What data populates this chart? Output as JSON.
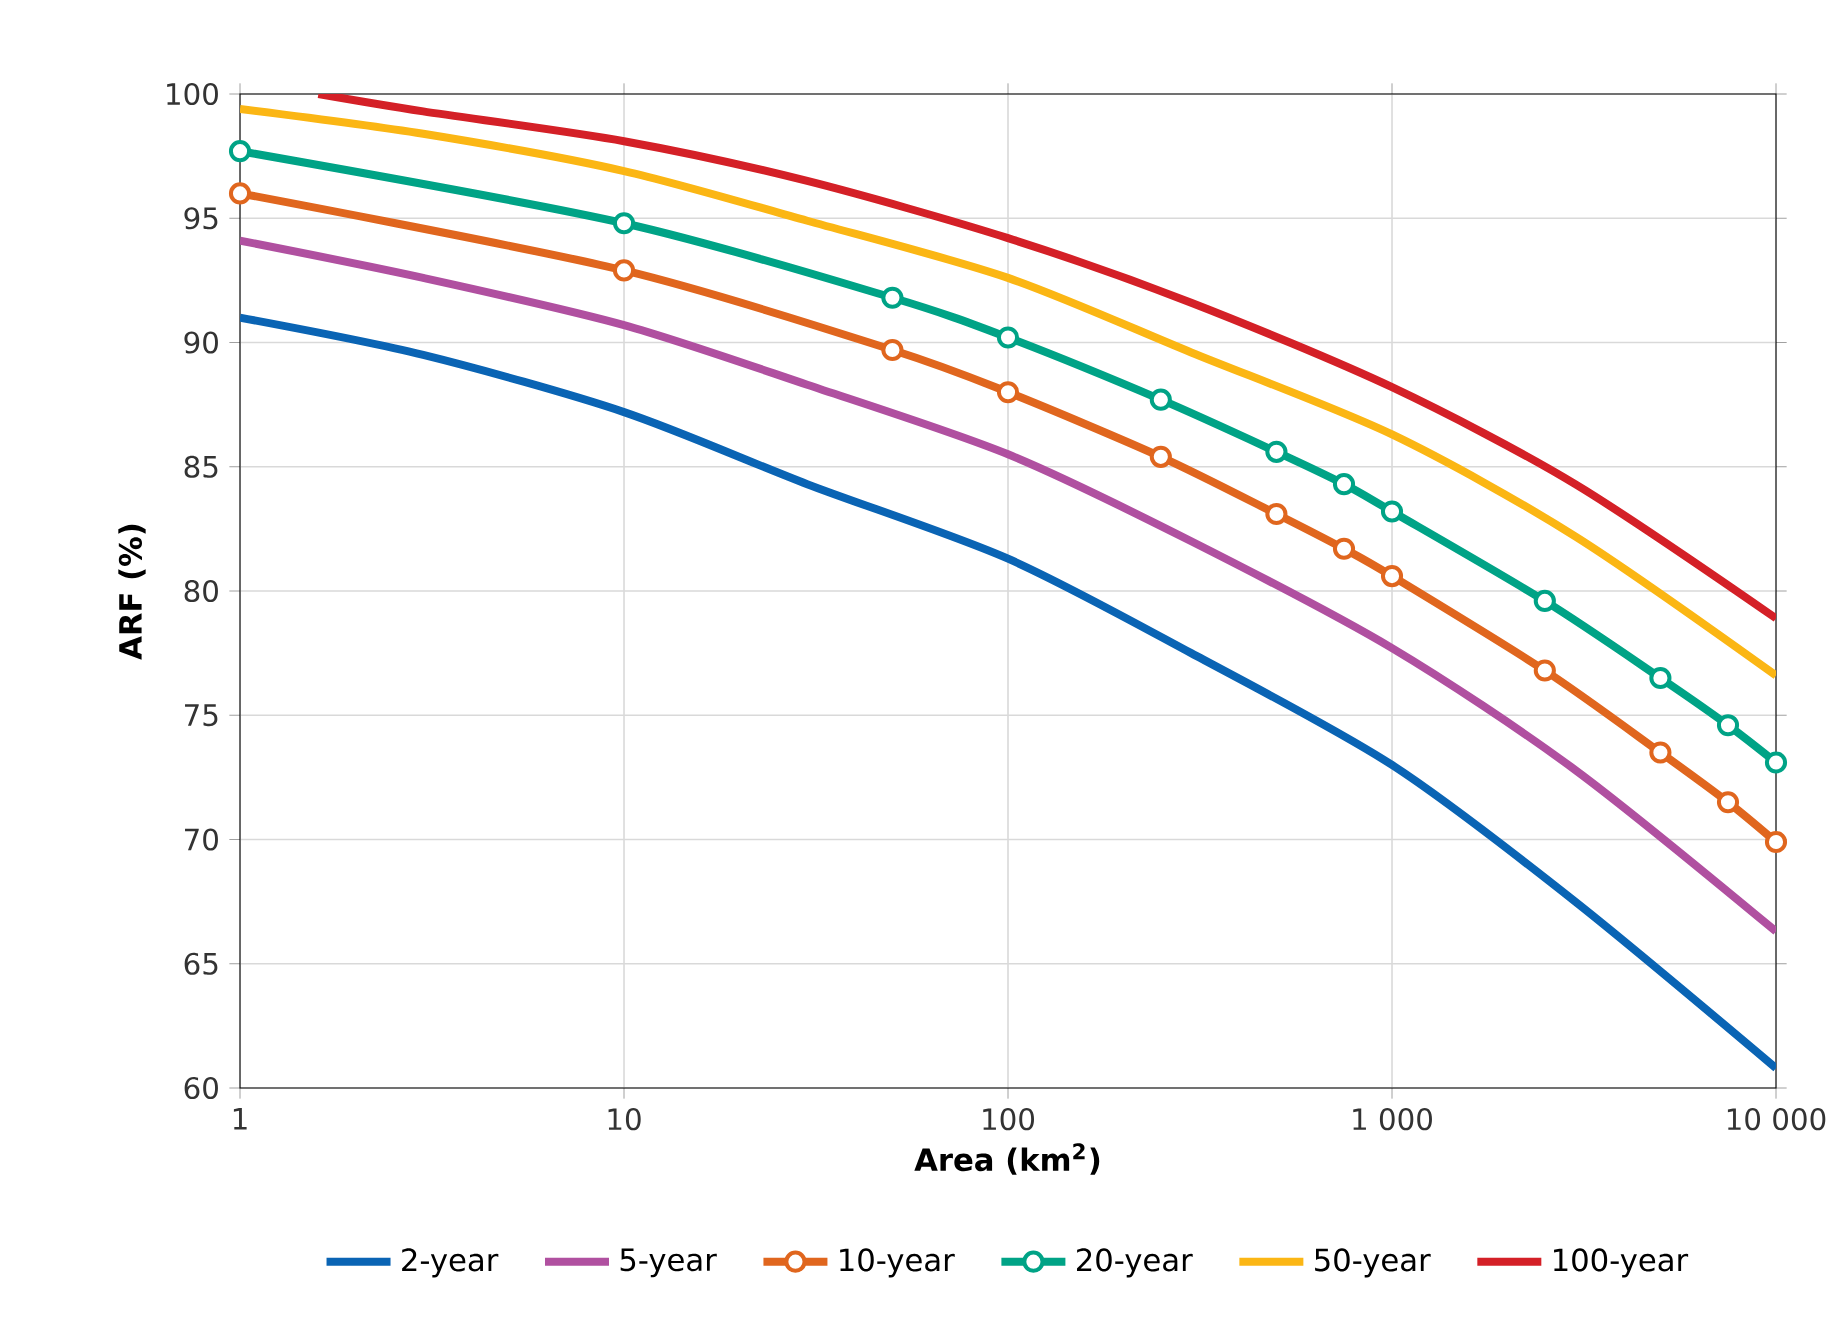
{
  "chart_data": {
    "type": "line",
    "xlabel": "Area (km$^{2}$)",
    "ylabel": "ARF (%)",
    "log": "x",
    "grid": true,
    "legend": "bottom",
    "xlim": [
      1,
      10000
    ],
    "ylim": [
      60,
      100
    ],
    "xticks": [
      1,
      10,
      100,
      {
        "value": 1000,
        "label": "1 000"
      },
      {
        "value": 10000,
        "label": "10 000"
      }
    ],
    "yticks": [
      60,
      65,
      70,
      75,
      80,
      85,
      90,
      95,
      100
    ],
    "series": [
      {
        "name": "2-year",
        "color": "#0a64b4",
        "x": [
          1,
          3,
          10,
          30,
          100,
          300,
          1000,
          3000,
          10000
        ],
        "values": [
          91.0,
          89.5,
          87.2,
          84.3,
          81.3,
          77.5,
          73.0,
          67.5,
          60.8
        ]
      },
      {
        "name": "5-year",
        "color": "#b050a0",
        "x": [
          1,
          3,
          10,
          30,
          100,
          300,
          1000,
          3000,
          10000
        ],
        "values": [
          94.1,
          92.6,
          90.7,
          88.3,
          85.5,
          82.0,
          77.7,
          72.8,
          66.3
        ]
      },
      {
        "name": "10-year",
        "color": "#e0661e",
        "marker": "circle",
        "x": [
          1,
          10,
          50,
          100,
          250,
          500,
          750,
          1000,
          2500,
          5000,
          7500,
          10000
        ],
        "values": [
          96.0,
          92.9,
          89.7,
          88.0,
          85.4,
          83.1,
          81.7,
          80.6,
          76.8,
          73.5,
          71.5,
          69.9
        ]
      },
      {
        "name": "20-year",
        "color": "#00a386",
        "marker": "circle",
        "x": [
          1,
          10,
          50,
          100,
          250,
          500,
          750,
          1000,
          2500,
          5000,
          7500,
          10000
        ],
        "values": [
          97.7,
          94.8,
          91.8,
          90.2,
          87.7,
          85.6,
          84.3,
          83.2,
          79.6,
          76.5,
          74.6,
          73.1
        ]
      },
      {
        "name": "50-year",
        "color": "#fbb614",
        "x": [
          1,
          3,
          10,
          30,
          100,
          300,
          1000,
          3000,
          10000
        ],
        "values": [
          99.4,
          98.4,
          96.9,
          94.9,
          92.6,
          89.6,
          86.3,
          82.2,
          76.6
        ]
      },
      {
        "name": "100-year",
        "color": "#d42027",
        "x": [
          1.6,
          3,
          10,
          30,
          100,
          300,
          1000,
          3000,
          10000
        ],
        "values": [
          100.0,
          99.3,
          98.1,
          96.5,
          94.2,
          91.6,
          88.2,
          84.3,
          78.9
        ]
      }
    ]
  }
}
